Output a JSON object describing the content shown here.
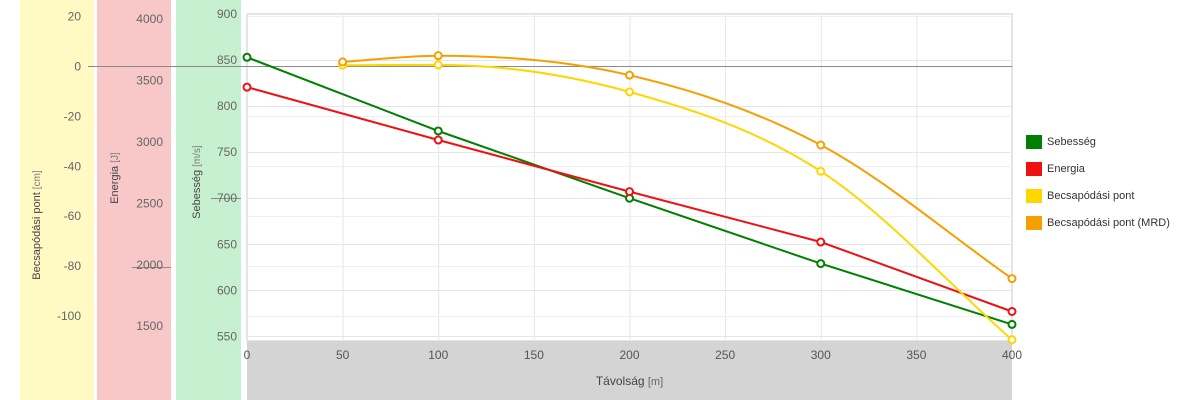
{
  "chart_data": {
    "type": "line",
    "xlabel": "Távolság",
    "xunit": "[m]",
    "xlim": [
      0,
      400
    ],
    "xticks": [
      0,
      50,
      100,
      150,
      200,
      250,
      300,
      350,
      400
    ],
    "axes": [
      {
        "id": "poi",
        "label": "Becsapódási pont",
        "unit": "[cm]",
        "lim": [
          -110,
          21
        ],
        "ticks": [
          20,
          0,
          -20,
          -40,
          -60,
          -80,
          -100
        ],
        "band_color": "#fff9c4",
        "line_value": 0
      },
      {
        "id": "energy",
        "label": "Energia",
        "unit": "[J]",
        "lim": [
          1380,
          4040
        ],
        "ticks": [
          4000,
          3500,
          3000,
          2500,
          2000,
          1500
        ],
        "band_color": "#f8c8c8",
        "line_value": 1985
      },
      {
        "id": "velocity",
        "label": "Sebesség",
        "unit": "[m/s]",
        "lim": [
          545,
          900
        ],
        "ticks": [
          900,
          850,
          800,
          750,
          700,
          650,
          600,
          550
        ],
        "band_color": "#c6f0d0",
        "line_value": 700
      }
    ],
    "series": [
      {
        "name": "Sebesség",
        "axis": "velocity",
        "color": "#008000",
        "curve": "linear",
        "x": [
          0,
          100,
          200,
          300,
          400
        ],
        "y": [
          853,
          773,
          700,
          629,
          563
        ]
      },
      {
        "name": "Energia",
        "axis": "energy",
        "color": "#ee1111",
        "curve": "linear",
        "x": [
          0,
          100,
          200,
          300,
          400
        ],
        "y": [
          3445,
          3015,
          2595,
          2185,
          1620
        ]
      },
      {
        "name": "Becsapódási pont",
        "axis": "poi",
        "color": "#ffd700",
        "curve": "smooth",
        "x": [
          50,
          100,
          200,
          300,
          400
        ],
        "y": [
          0.5,
          0.6,
          -10.2,
          -42,
          -109.5
        ]
      },
      {
        "name": "Becsapódási pont (MRD)",
        "axis": "poi",
        "color": "#f5a000",
        "curve": "smooth",
        "x": [
          50,
          100,
          200,
          300,
          400
        ],
        "y": [
          1.8,
          4.3,
          -3.5,
          -31.5,
          -85
        ]
      }
    ],
    "legend_position": "right",
    "grid": true
  }
}
